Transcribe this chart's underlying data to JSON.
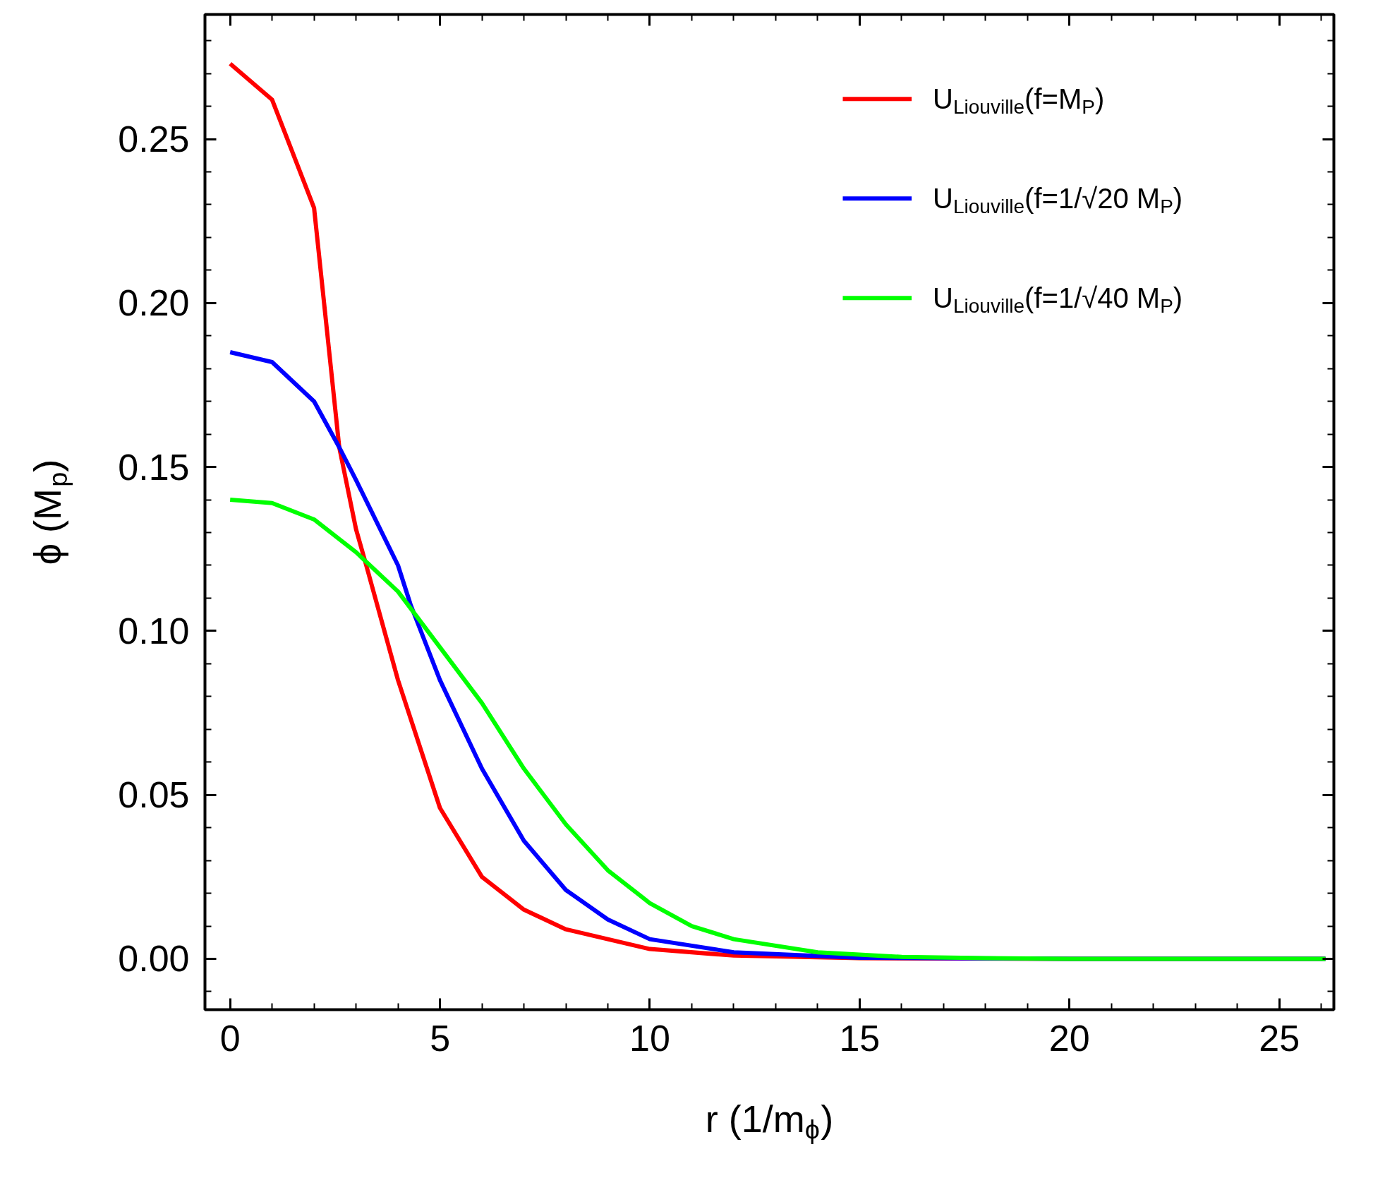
{
  "chart_data": {
    "type": "line",
    "xlabel": "r (1/m$_{ϕ}$)",
    "ylabel": "ϕ (M$_{p}$)",
    "xlim": [
      -0.6,
      26.3
    ],
    "ylim": [
      -0.0155,
      0.288
    ],
    "xticks": [
      0,
      5,
      10,
      15,
      20,
      25
    ],
    "yticks": [
      {
        "value": 0,
        "label": "0.00"
      },
      {
        "value": 0.05,
        "label": "0.05"
      },
      {
        "value": 0.1,
        "label": "0.10"
      },
      {
        "value": 0.15,
        "label": "0.15"
      },
      {
        "value": 0.2,
        "label": "0.20"
      },
      {
        "value": 0.25,
        "label": "0.25"
      }
    ],
    "grid": false,
    "legend": "top right",
    "line_style": "solid",
    "marker": "none",
    "series": [
      {
        "name": "U$_{Liouville}$(f=M$_{P}$)",
        "color": "#ff0000",
        "x": [
          0,
          1,
          2,
          2.6,
          3,
          3.2,
          4,
          5,
          6,
          7,
          8,
          10,
          12,
          15,
          20,
          26.1
        ],
        "values": [
          0.273,
          0.262,
          0.229,
          0.156,
          0.131,
          0.122,
          0.085,
          0.046,
          0.025,
          0.015,
          0.009,
          0.003,
          0.001,
          0.0002,
          0,
          0
        ]
      },
      {
        "name": "U$_{Liouville}$(f=1/√20 M$_{P}$)",
        "color": "#0000ff",
        "x": [
          0,
          1,
          2,
          2.6,
          3,
          4,
          4.3,
          5,
          6,
          7,
          8,
          9,
          10,
          12,
          15,
          20,
          26.1
        ],
        "values": [
          0.185,
          0.182,
          0.17,
          0.156,
          0.146,
          0.12,
          0.108,
          0.085,
          0.058,
          0.036,
          0.021,
          0.012,
          0.006,
          0.002,
          0.0003,
          0,
          0
        ]
      },
      {
        "name": "U$_{Liouville}$(f=1/√40 M$_{P}$)",
        "color": "#00ff00",
        "x": [
          0,
          1,
          2,
          3,
          4,
          5,
          6,
          7,
          8,
          9,
          10,
          11,
          12,
          14,
          16,
          18,
          20,
          26.1
        ],
        "values": [
          0.14,
          0.139,
          0.134,
          0.124,
          0.112,
          0.095,
          0.078,
          0.058,
          0.041,
          0.027,
          0.017,
          0.01,
          0.006,
          0.002,
          0.0006,
          0.0002,
          0,
          0
        ]
      }
    ]
  }
}
